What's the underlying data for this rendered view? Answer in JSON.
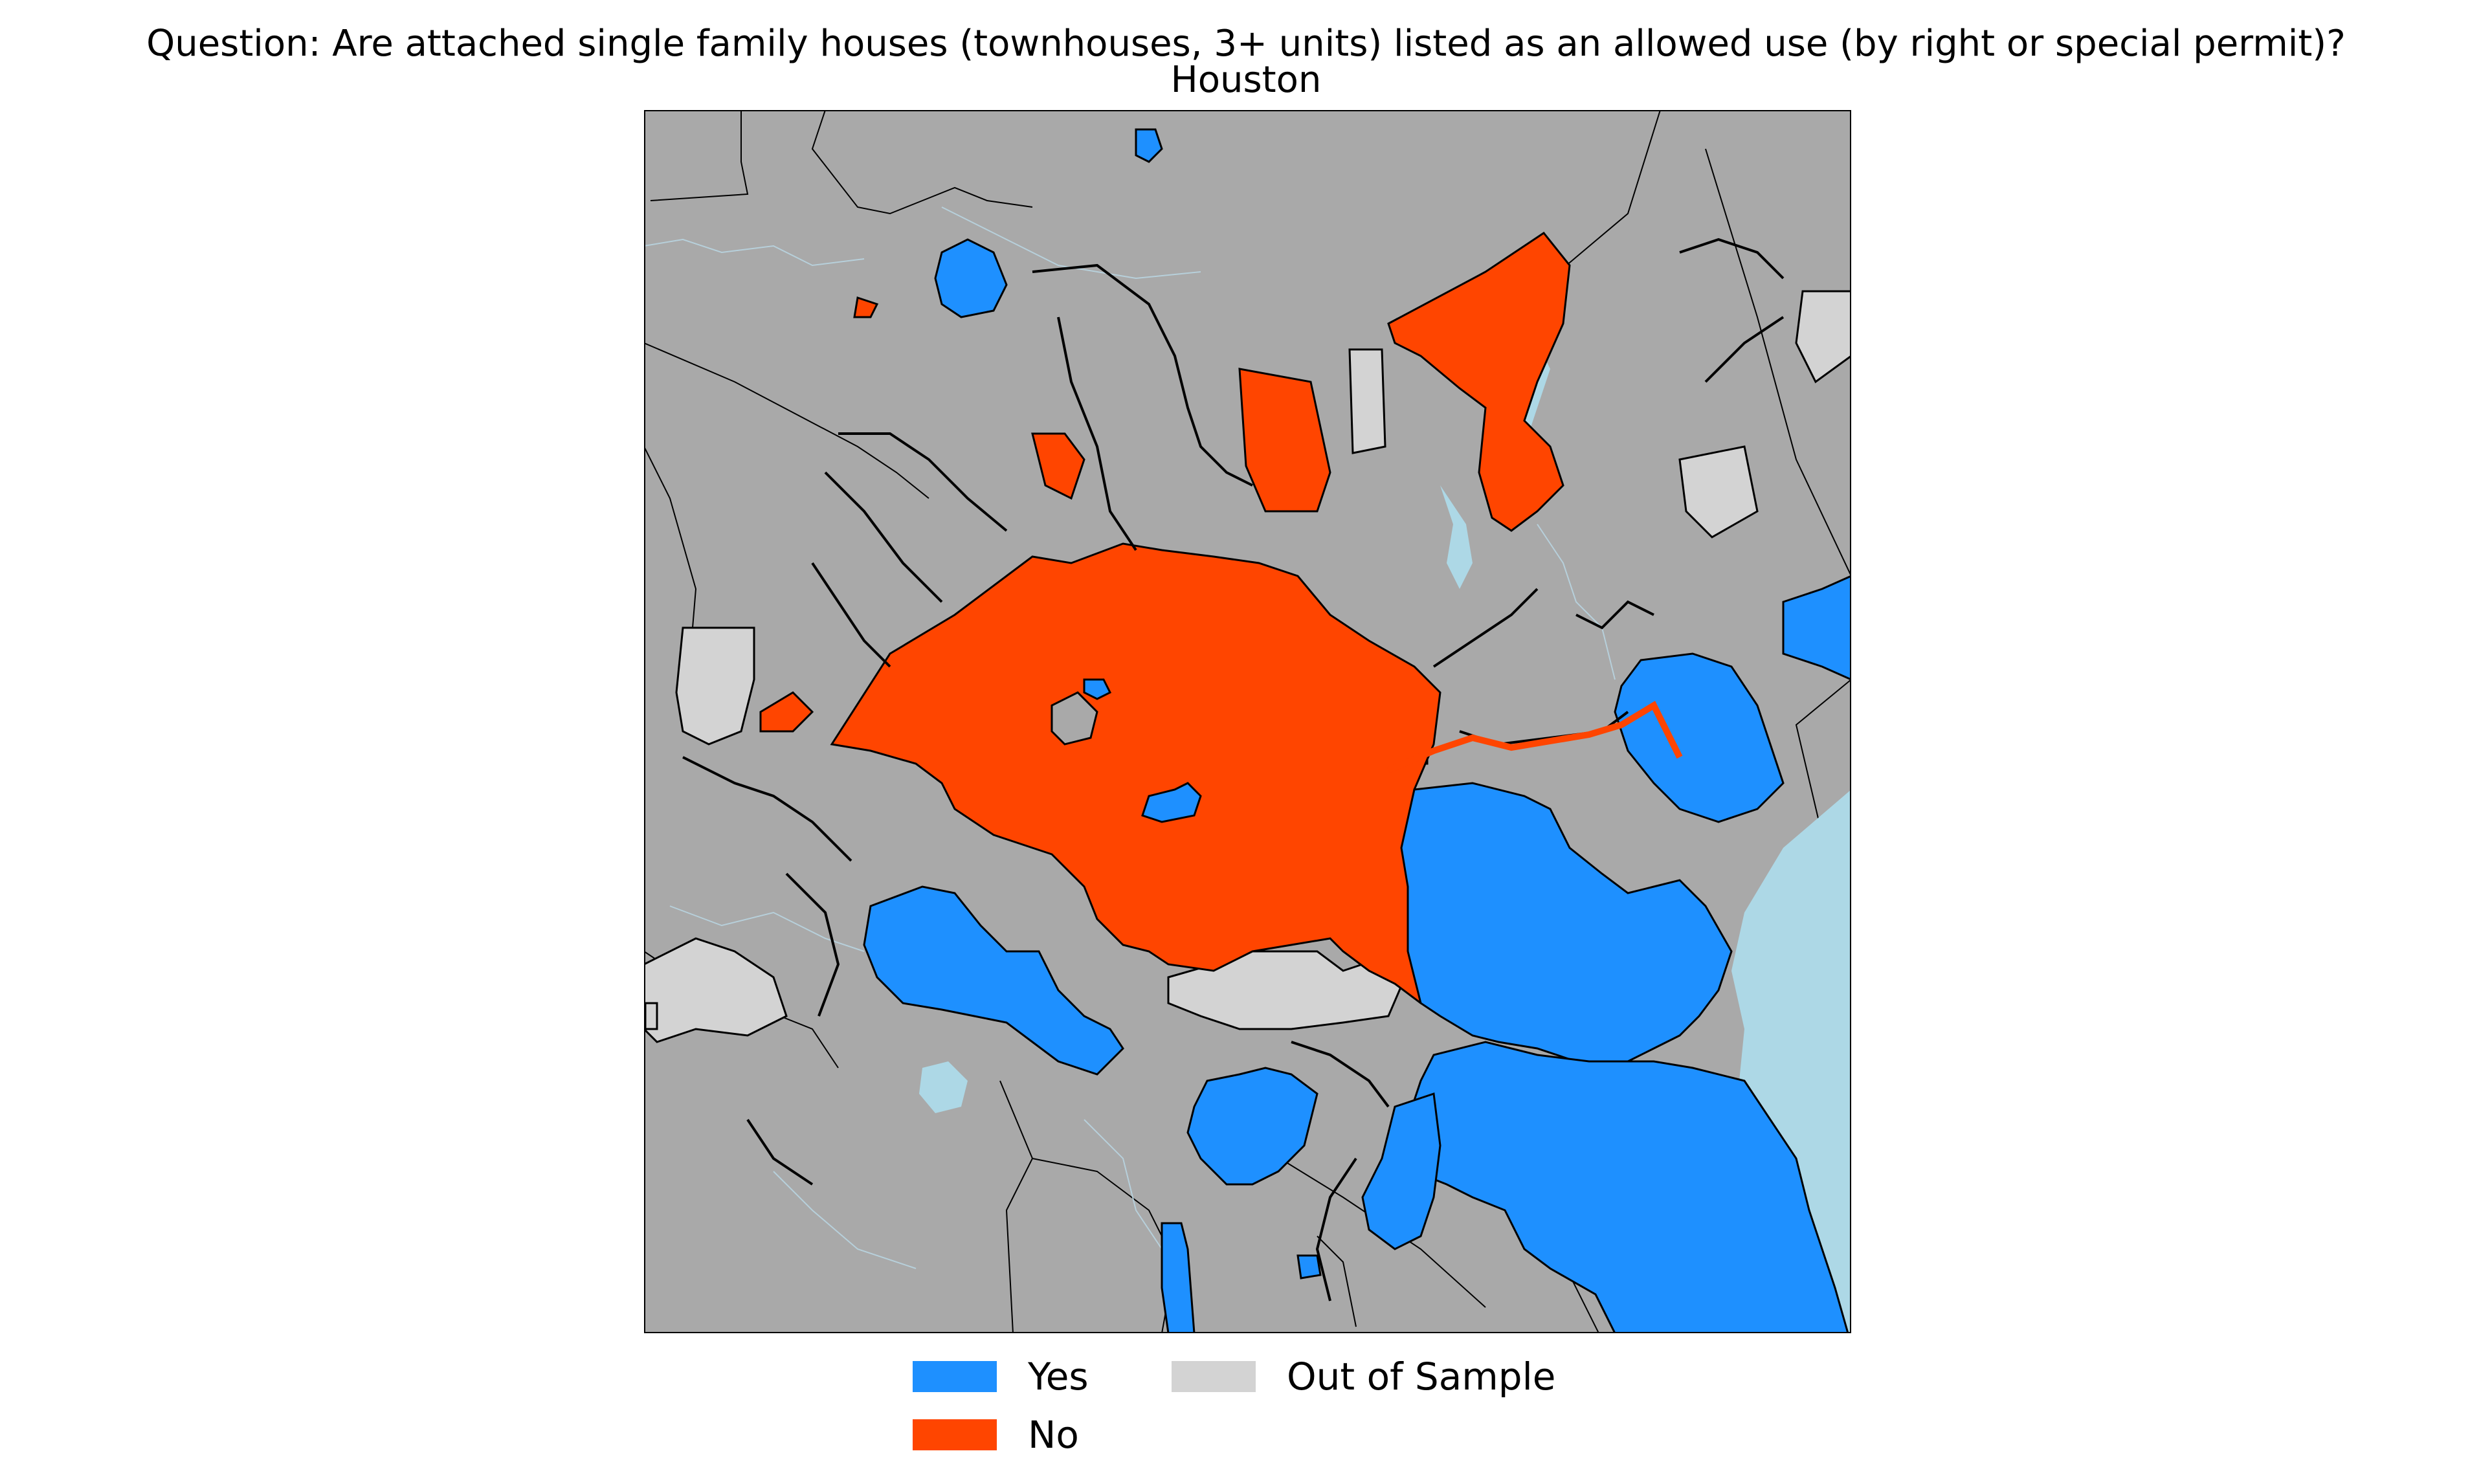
{
  "title": {
    "line1": "Question: Are attached single family houses (townhouses, 3+ units) listed as an allowed use (by right or special permit)?",
    "line2": "Houston"
  },
  "colors": {
    "yes": "#1E90FF",
    "no": "#FF4500",
    "out_of_sample": "#D3D3D3",
    "unincorporated": "#A9A9A9",
    "water": "#ADD8E6",
    "boundary": "#000000"
  },
  "legend": {
    "items": [
      {
        "key": "yes",
        "label": "Yes",
        "color": "#1E90FF"
      },
      {
        "key": "no",
        "label": "No",
        "color": "#FF4500"
      },
      {
        "key": "out_of_sample",
        "label": "Out of Sample",
        "color": "#D3D3D3"
      }
    ]
  }
}
